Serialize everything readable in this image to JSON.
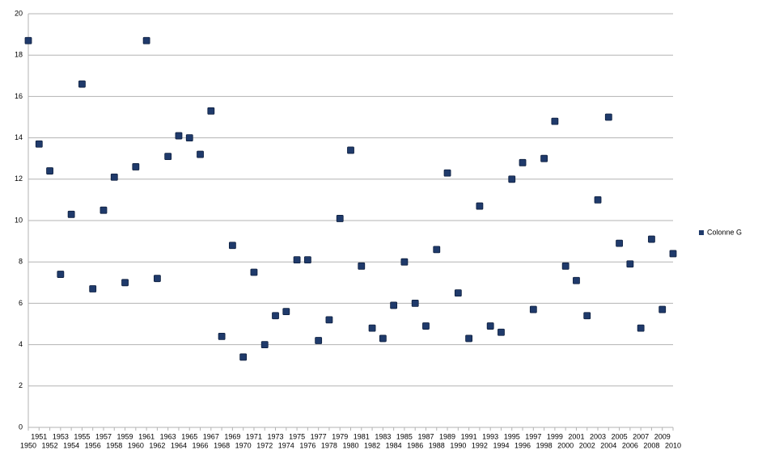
{
  "chart_data": {
    "type": "scatter",
    "categories": [
      "1950",
      "1951",
      "1952",
      "1953",
      "1954",
      "1955",
      "1956",
      "1957",
      "1958",
      "1959",
      "1960",
      "1961",
      "1962",
      "1963",
      "1964",
      "1965",
      "1966",
      "1967",
      "1968",
      "1969",
      "1970",
      "1971",
      "1972",
      "1973",
      "1974",
      "1975",
      "1976",
      "1977",
      "1978",
      "1979",
      "1980",
      "1981",
      "1982",
      "1983",
      "1984",
      "1985",
      "1986",
      "1987",
      "1988",
      "1989",
      "1990",
      "1991",
      "1992",
      "1993",
      "1994",
      "1995",
      "1996",
      "1997",
      "1998",
      "1999",
      "2000",
      "2001",
      "2002",
      "2003",
      "2004",
      "2005",
      "2006",
      "2007",
      "2008",
      "2009",
      "2010"
    ],
    "series": [
      {
        "name": "Colonne G",
        "color": "#1f3a6b",
        "values": [
          18.7,
          13.7,
          12.4,
          7.4,
          10.3,
          16.6,
          6.7,
          10.5,
          12.1,
          7.0,
          12.6,
          18.7,
          7.2,
          13.1,
          14.1,
          14.0,
          13.2,
          15.3,
          4.4,
          8.8,
          3.4,
          7.5,
          4.0,
          5.4,
          5.6,
          8.1,
          8.1,
          4.2,
          5.2,
          10.1,
          13.4,
          7.8,
          4.8,
          4.3,
          5.9,
          8.0,
          6.0,
          4.9,
          8.6,
          12.3,
          6.5,
          4.3,
          10.7,
          4.9,
          4.6,
          12.0,
          12.8,
          5.7,
          13.0,
          14.8,
          7.8,
          7.1,
          5.4,
          11.0,
          15.0,
          8.9,
          7.9,
          4.8,
          9.1,
          5.7,
          8.4
        ]
      }
    ],
    "ylim": [
      0,
      20
    ],
    "yticks": [
      0,
      2,
      4,
      6,
      8,
      10,
      12,
      14,
      16,
      18,
      20
    ],
    "grid": true,
    "legend": "right"
  }
}
